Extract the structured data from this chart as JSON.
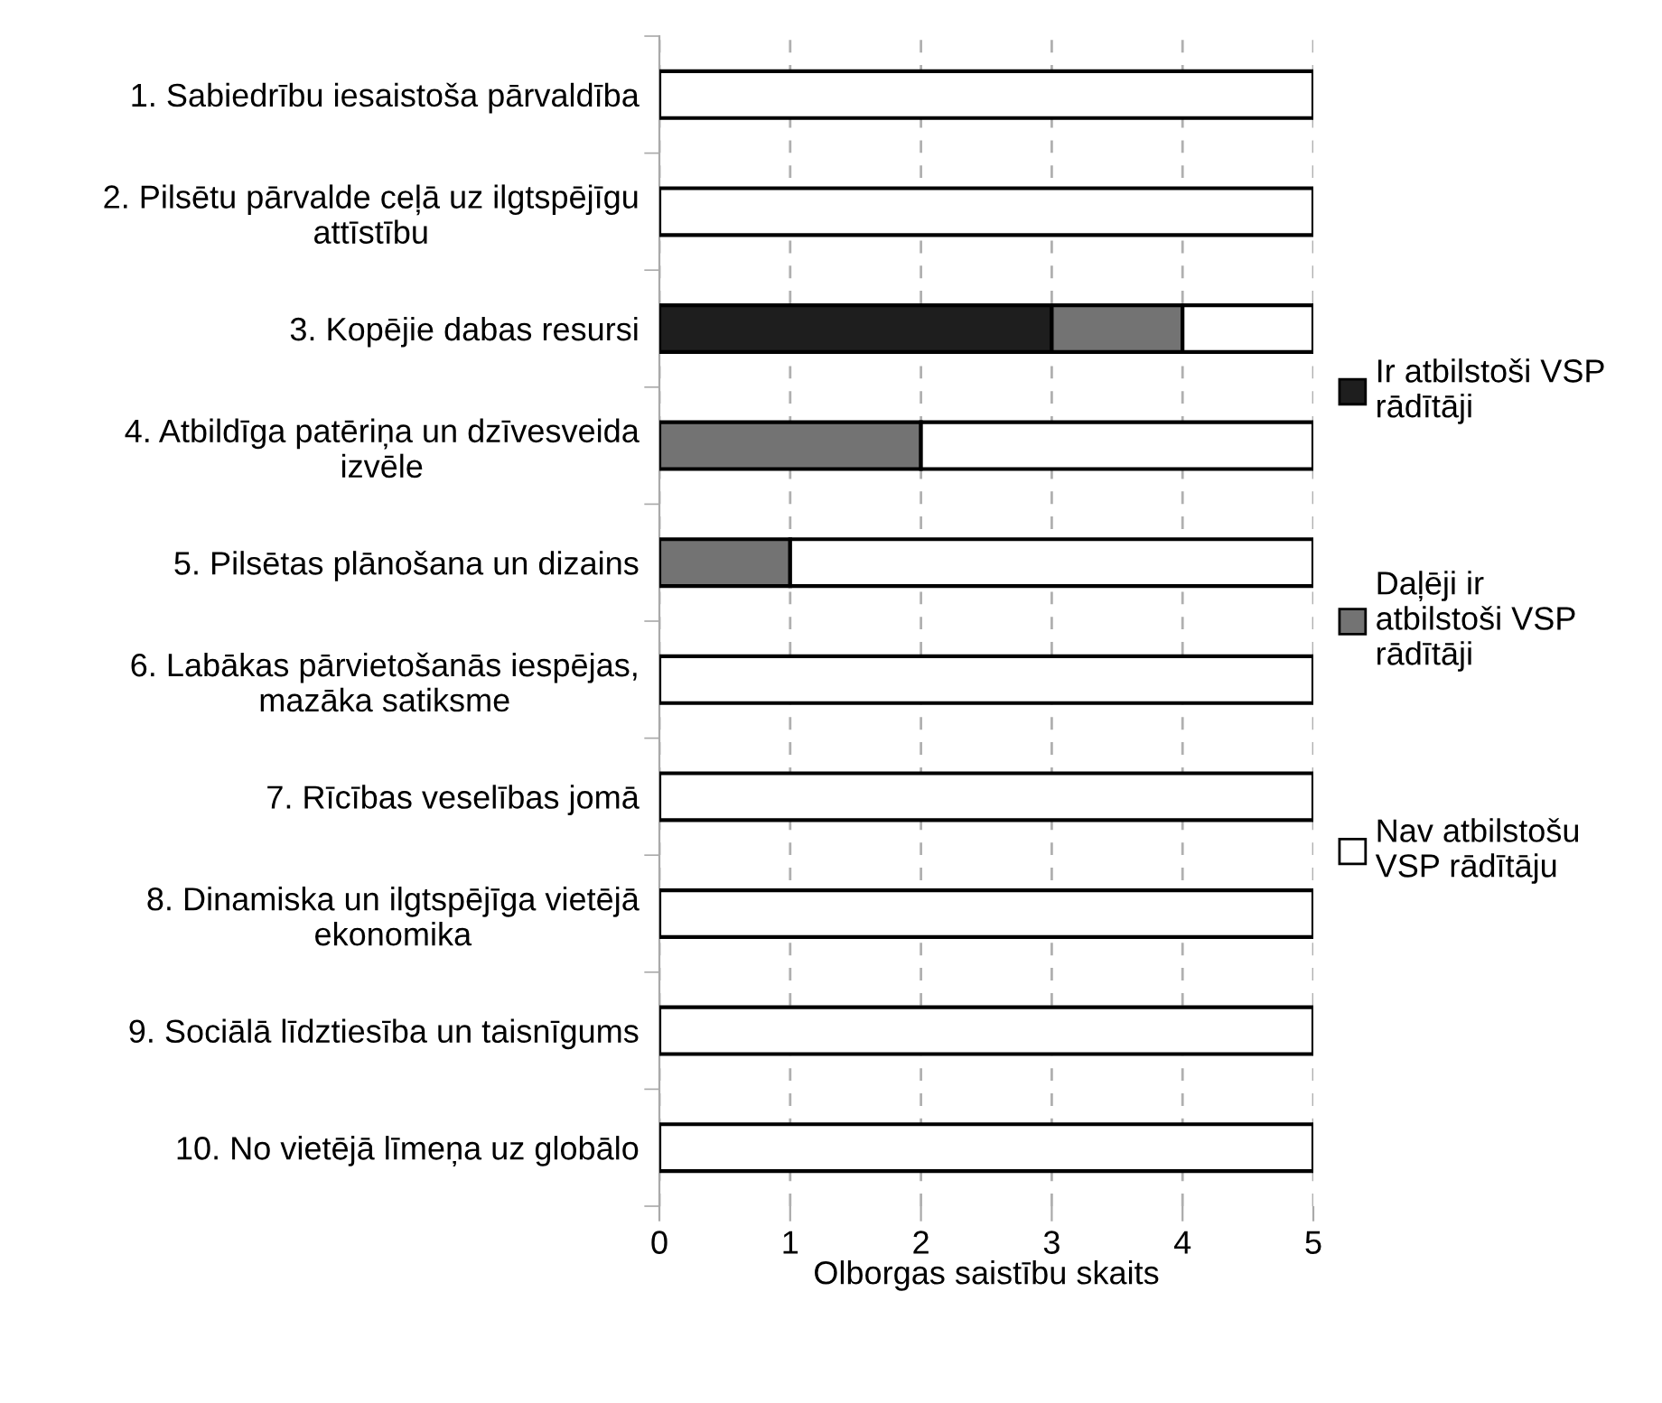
{
  "chart_data": {
    "type": "bar",
    "orientation": "horizontal",
    "stacked": true,
    "xlabel": "Olborgas saistību skaits",
    "categories": [
      "1. Sabiedrību iesaistoša pārvaldība",
      "2. Pilsētu pārvalde ceļā uz ilgtspējīgu\nattīstību",
      "3. Kopējie dabas resursi",
      "4. Atbildīga patēriņa un dzīvesveida\nizvēle",
      "5. Pilsētas plānošana un dizains",
      "6. Labākas pārvietošanās iespējas,\nmazāka satiksme",
      "7. Rīcības veselības jomā",
      "8. Dinamiska un ilgtspējīga vietējā\nekonomika",
      "9. Sociālā līdztiesība un taisnīgums",
      "10. No vietējā līmeņa uz globālo"
    ],
    "series": [
      {
        "name": "Ir atbilstoši VSP\nrādītāji",
        "color": "#1e1e1e",
        "values": [
          0,
          0,
          3,
          0,
          0,
          0,
          0,
          0,
          0,
          0
        ]
      },
      {
        "name": "Daļēji ir\natbilstoši VSP\nrādītāji",
        "color": "#737373",
        "values": [
          0,
          0,
          1,
          2,
          1,
          0,
          0,
          0,
          0,
          0
        ]
      },
      {
        "name": "Nav atbilstošu\nVSP rādītāju",
        "color": "#ffffff",
        "values": [
          5,
          5,
          1,
          3,
          4,
          5,
          5,
          5,
          5,
          5
        ]
      }
    ],
    "xlim": [
      0,
      5
    ],
    "xticks": [
      0,
      1,
      2,
      3,
      4,
      5
    ],
    "grid": "x",
    "legend": "right"
  }
}
